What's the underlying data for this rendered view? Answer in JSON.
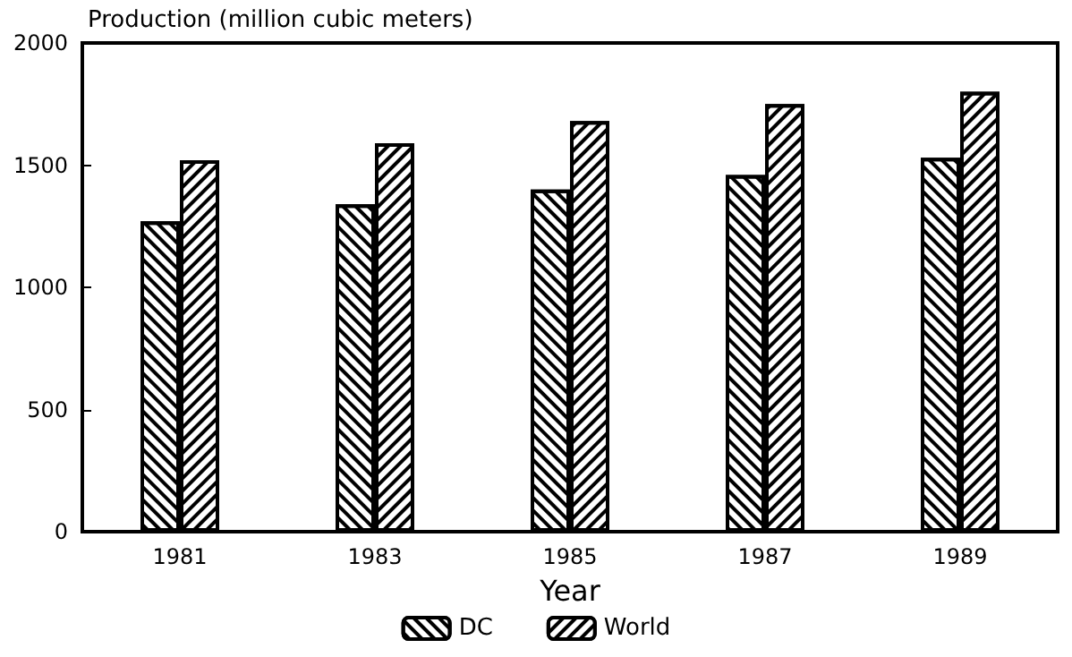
{
  "chart_data": {
    "type": "bar",
    "ylabel": "Production (million cubic meters)",
    "xlabel": "Year",
    "categories": [
      "1981",
      "1983",
      "1985",
      "1987",
      "1989"
    ],
    "series": [
      {
        "name": "DC",
        "color": "#000000",
        "values": [
          1270,
          1340,
          1400,
          1460,
          1530
        ]
      },
      {
        "name": "World",
        "color": "#000000",
        "values": [
          1520,
          1590,
          1680,
          1750,
          1800
        ]
      }
    ],
    "ylim": [
      0,
      2000
    ],
    "yticks": [
      0,
      500,
      1000,
      1500,
      2000
    ],
    "grid": false,
    "legend": "bottom"
  }
}
